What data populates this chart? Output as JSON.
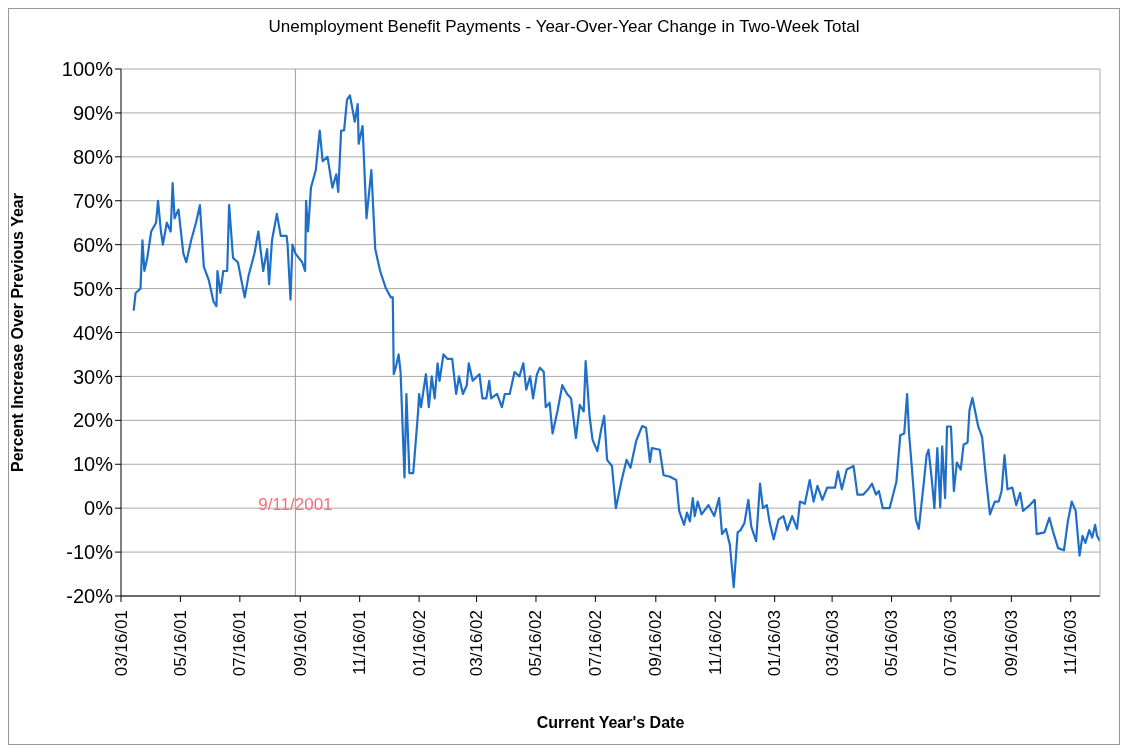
{
  "chart_data": {
    "type": "line",
    "title": "Unemployment Benefit Payments - Year-Over-Year Change in Two-Week Total",
    "xlabel": "Current Year's Date",
    "ylabel": "Percent Increase Over Previous Year",
    "x": [
      "2001-03-29",
      "2001-03-31",
      "2001-04-05",
      "2001-04-07",
      "2001-04-09",
      "2001-04-12",
      "2001-04-16",
      "2001-04-21",
      "2001-04-23",
      "2001-04-26",
      "2001-04-28",
      "2001-05-02",
      "2001-05-06",
      "2001-05-08",
      "2001-05-10",
      "2001-05-14",
      "2001-05-19",
      "2001-05-22",
      "2001-05-27",
      "2001-06-01",
      "2001-06-05",
      "2001-06-09",
      "2001-06-14",
      "2001-06-19",
      "2001-06-22",
      "2001-06-23",
      "2001-06-26",
      "2001-06-29",
      "2001-07-03",
      "2001-07-05",
      "2001-07-09",
      "2001-07-14",
      "2001-07-21",
      "2001-07-25",
      "2001-07-31",
      "2001-08-04",
      "2001-08-09",
      "2001-08-13",
      "2001-08-15",
      "2001-08-18",
      "2001-08-23",
      "2001-08-27",
      "2001-09-02",
      "2001-09-03",
      "2001-09-06",
      "2001-09-08",
      "2001-09-11",
      "2001-09-18",
      "2001-09-21",
      "2001-09-22",
      "2001-09-24",
      "2001-09-27",
      "2001-10-02",
      "2001-10-06",
      "2001-10-09",
      "2001-10-14",
      "2001-10-19",
      "2001-10-23",
      "2001-10-25",
      "2001-10-28",
      "2001-10-31",
      "2001-11-03",
      "2001-11-06",
      "2001-11-11",
      "2001-11-14",
      "2001-11-15",
      "2001-11-19",
      "2001-11-23",
      "2001-11-28",
      "2001-12-02",
      "2001-12-07",
      "2001-12-13",
      "2001-12-18",
      "2001-12-20",
      "2001-12-21",
      "2001-12-23",
      "2001-12-26",
      "2001-12-28",
      "2002-01-01",
      "2002-01-03",
      "2002-01-06",
      "2002-01-10",
      "2002-01-15",
      "2002-01-16",
      "2002-01-18",
      "2002-01-23",
      "2002-01-26",
      "2002-01-29",
      "2002-02-01",
      "2002-02-04",
      "2002-02-06",
      "2002-02-10",
      "2002-02-14",
      "2002-02-19",
      "2002-02-23",
      "2002-02-26",
      "2002-03-02",
      "2002-03-06",
      "2002-03-08",
      "2002-03-12",
      "2002-03-19",
      "2002-03-22",
      "2002-03-26",
      "2002-03-29",
      "2002-03-31",
      "2002-04-06",
      "2002-04-11",
      "2002-04-14",
      "2002-04-19",
      "2002-04-24",
      "2002-04-29",
      "2002-05-03",
      "2002-05-06",
      "2002-05-10",
      "2002-05-13",
      "2002-05-17",
      "2002-05-20",
      "2002-05-24",
      "2002-05-26",
      "2002-05-30",
      "2002-06-02",
      "2002-06-07",
      "2002-06-12",
      "2002-06-17",
      "2002-06-21",
      "2002-06-26",
      "2002-06-30",
      "2002-07-04",
      "2002-07-06",
      "2002-07-10",
      "2002-07-13",
      "2002-07-18",
      "2002-07-22",
      "2002-07-25",
      "2002-07-28",
      "2002-08-02",
      "2002-08-06",
      "2002-08-12",
      "2002-08-17",
      "2002-08-21",
      "2002-08-27",
      "2002-09-02",
      "2002-09-06",
      "2002-09-10",
      "2002-09-12",
      "2002-09-20",
      "2002-09-24",
      "2002-09-30",
      "2002-10-07",
      "2002-10-10",
      "2002-10-15",
      "2002-10-18",
      "2002-10-21",
      "2002-10-24",
      "2002-10-26",
      "2002-10-29",
      "2002-11-02",
      "2002-11-09",
      "2002-11-15",
      "2002-11-20",
      "2002-11-23",
      "2002-11-27",
      "2002-12-01",
      "2002-12-05",
      "2002-12-09",
      "2002-12-12",
      "2002-12-16",
      "2002-12-20",
      "2002-12-23",
      "2002-12-28",
      "2003-01-01",
      "2003-01-04",
      "2003-01-08",
      "2003-01-11",
      "2003-01-15",
      "2003-01-20",
      "2003-01-25",
      "2003-01-29",
      "2003-02-03",
      "2003-02-08",
      "2003-02-11",
      "2003-02-16",
      "2003-02-21",
      "2003-02-25",
      "2003-03-01",
      "2003-03-06",
      "2003-03-11",
      "2003-03-19",
      "2003-03-22",
      "2003-03-26",
      "2003-03-31",
      "2003-04-07",
      "2003-04-11",
      "2003-04-17",
      "2003-04-22",
      "2003-04-26",
      "2003-04-30",
      "2003-05-03",
      "2003-05-07",
      "2003-05-14",
      "2003-05-21",
      "2003-05-25",
      "2003-05-29",
      "2003-06-01",
      "2003-06-03",
      "2003-06-06",
      "2003-06-10",
      "2003-06-13",
      "2003-06-18",
      "2003-06-21",
      "2003-06-23",
      "2003-06-26",
      "2003-06-29",
      "2003-07-02",
      "2003-07-05",
      "2003-07-07",
      "2003-07-10",
      "2003-07-12",
      "2003-07-16",
      "2003-07-19",
      "2003-07-22",
      "2003-07-26",
      "2003-07-29",
      "2003-08-02",
      "2003-08-04",
      "2003-08-07",
      "2003-08-10",
      "2003-08-13",
      "2003-08-17",
      "2003-08-21",
      "2003-08-25",
      "2003-08-30",
      "2003-09-03",
      "2003-09-06",
      "2003-09-09",
      "2003-09-12",
      "2003-09-17",
      "2003-09-21",
      "2003-09-25",
      "2003-09-28",
      "2003-10-05",
      "2003-10-10",
      "2003-10-12",
      "2003-10-20",
      "2003-10-25",
      "2003-10-29",
      "2003-11-03",
      "2003-11-09",
      "2003-11-13",
      "2003-11-17",
      "2003-11-21",
      "2003-11-25",
      "2003-11-28",
      "2003-12-01",
      "2003-12-05",
      "2003-12-08",
      "2003-12-11",
      "2003-12-13",
      "2003-12-16"
    ],
    "series": [
      {
        "color": "#1f6fc8",
        "values": [
          45,
          49,
          50,
          61,
          54,
          57,
          63,
          65,
          70,
          63,
          60,
          65,
          63,
          74,
          66,
          68,
          58,
          56,
          61,
          65,
          69,
          55,
          52,
          47,
          46,
          54,
          49,
          54,
          54,
          69,
          57,
          56,
          48,
          53,
          58,
          63,
          54,
          59,
          51,
          61,
          67,
          62,
          62,
          60,
          47.5,
          60,
          58,
          56,
          54,
          70,
          63,
          73,
          77,
          86,
          79,
          80,
          73,
          76,
          72,
          86,
          86,
          93,
          94,
          88,
          92,
          83,
          87,
          66,
          77,
          59,
          54,
          50,
          48,
          48,
          30.5,
          32,
          35,
          31,
          7,
          26,
          8,
          8,
          22,
          26,
          23,
          30.5,
          23,
          30,
          25,
          33,
          29,
          35,
          34,
          34,
          26,
          30,
          26,
          28,
          33,
          29,
          30.5,
          25,
          25,
          29,
          25,
          26,
          23,
          26,
          26,
          31,
          30,
          33,
          27,
          30,
          25,
          30.5,
          32,
          31,
          23,
          24,
          17,
          22,
          28,
          26,
          25,
          16,
          23.5,
          22,
          33.5,
          21,
          15.6,
          13,
          18,
          21,
          11,
          9.6,
          0,
          6.4,
          11,
          9.2,
          15.4,
          18.7,
          18.3,
          10.5,
          13.7,
          13.3,
          7.5,
          7.2,
          6.4,
          -0.6,
          -3.8,
          -1,
          -3,
          2.3,
          -1.8,
          1.5,
          -1.4,
          0.7,
          -1.8,
          2.3,
          -5.9,
          -4.7,
          -8.3,
          -18,
          -5.5,
          -5,
          -3.4,
          1.9,
          -4.2,
          -7.5,
          5.6,
          0,
          0.7,
          -3.4,
          -7.1,
          -2.6,
          -1.8,
          -5,
          -1.8,
          -4.7,
          1.5,
          1,
          6.4,
          1.5,
          5.1,
          1.9,
          4.7,
          4.7,
          8.4,
          4.3,
          8.8,
          9.6,
          3.1,
          3.1,
          4.3,
          5.6,
          3.1,
          3.9,
          0,
          0,
          6,
          16.6,
          17,
          26,
          17,
          8.8,
          -2.6,
          -4.7,
          5.6,
          12.1,
          13.3,
          7.2,
          0,
          13.7,
          0.2,
          14.1,
          2.3,
          18.6,
          18.6,
          3.9,
          10.4,
          8.8,
          14.5,
          14.9,
          22.3,
          25.1,
          21.9,
          18.6,
          16.2,
          6.8,
          -1.4,
          1.5,
          1.5,
          3.9,
          12.1,
          4.3,
          4.7,
          0.7,
          3.5,
          -0.6,
          0.7,
          1.9,
          -5.9,
          -5.5,
          -2.2,
          -5.5,
          -9.1,
          -9.6,
          -3,
          1.5,
          -0.6,
          -10.8,
          -6.3,
          -7.9,
          -5,
          -6.7,
          -3.8,
          -6.3,
          -7.5
        ]
      }
    ],
    "xlim": [
      "2001-03-16",
      "2003-12-16"
    ],
    "xticks": [
      {
        "value": "2001-03-16",
        "label": "03/16/01"
      },
      {
        "value": "2001-05-16",
        "label": "05/16/01"
      },
      {
        "value": "2001-07-16",
        "label": "07/16/01"
      },
      {
        "value": "2001-09-16",
        "label": "09/16/01"
      },
      {
        "value": "2001-11-16",
        "label": "11/16/01"
      },
      {
        "value": "2002-01-16",
        "label": "01/16/02"
      },
      {
        "value": "2002-03-16",
        "label": "03/16/02"
      },
      {
        "value": "2002-05-16",
        "label": "05/16/02"
      },
      {
        "value": "2002-07-16",
        "label": "07/16/02"
      },
      {
        "value": "2002-09-16",
        "label": "09/16/02"
      },
      {
        "value": "2002-11-16",
        "label": "11/16/02"
      },
      {
        "value": "2003-01-16",
        "label": "01/16/03"
      },
      {
        "value": "2003-03-16",
        "label": "03/16/03"
      },
      {
        "value": "2003-05-16",
        "label": "05/16/03"
      },
      {
        "value": "2003-07-16",
        "label": "07/16/03"
      },
      {
        "value": "2003-09-16",
        "label": "09/16/03"
      },
      {
        "value": "2003-11-16",
        "label": "11/16/03"
      }
    ],
    "ylim": [
      -20,
      100
    ],
    "yticks": [
      {
        "value": -20,
        "label": "-20%"
      },
      {
        "value": -10,
        "label": "-10%"
      },
      {
        "value": 0,
        "label": "0%"
      },
      {
        "value": 10,
        "label": "10%"
      },
      {
        "value": 20,
        "label": "20%"
      },
      {
        "value": 30,
        "label": "30%"
      },
      {
        "value": 40,
        "label": "40%"
      },
      {
        "value": 50,
        "label": "50%"
      },
      {
        "value": 60,
        "label": "60%"
      },
      {
        "value": 70,
        "label": "70%"
      },
      {
        "value": 80,
        "label": "80%"
      },
      {
        "value": 90,
        "label": "90%"
      },
      {
        "value": 100,
        "label": "100%"
      }
    ],
    "ref_lines": [
      {
        "axis": "x",
        "value": "2001-09-11",
        "label": "9/11/2001",
        "color": "#f07080"
      }
    ],
    "grid": "y",
    "marker": "none",
    "line_style": "solid"
  }
}
